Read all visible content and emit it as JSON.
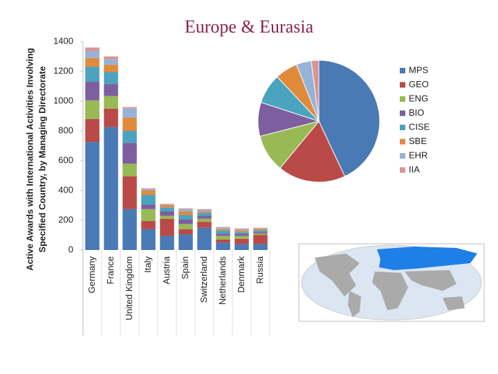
{
  "title": "Europe & Eurasia",
  "chart_data": [
    {
      "type": "bar",
      "ylabel": [
        "Active Awards with International Activities Involving",
        "Specified Country, by Managing Directorate"
      ],
      "categories": [
        "Germany",
        "France",
        "United Kingdom",
        "Italy",
        "Austria",
        "Spain",
        "Switzerland",
        "Netherlands",
        "Denmark",
        "Russia"
      ],
      "series": [
        {
          "name": "MPS",
          "color": "#4a7ab5",
          "values": [
            725,
            825,
            275,
            140,
            95,
            105,
            150,
            50,
            40,
            40
          ]
        },
        {
          "name": "GEO",
          "color": "#b94a48",
          "values": [
            155,
            125,
            220,
            55,
            115,
            35,
            40,
            20,
            35,
            60
          ]
        },
        {
          "name": "ENG",
          "color": "#98b954",
          "values": [
            125,
            85,
            85,
            80,
            20,
            35,
            20,
            25,
            20,
            10
          ]
        },
        {
          "name": "BIO",
          "color": "#7d5fa0",
          "values": [
            125,
            80,
            140,
            30,
            30,
            30,
            20,
            15,
            15,
            10
          ]
        },
        {
          "name": "CISE",
          "color": "#4aa3bf",
          "values": [
            100,
            80,
            80,
            65,
            25,
            30,
            20,
            20,
            10,
            10
          ]
        },
        {
          "name": "SBE",
          "color": "#e08a3c",
          "values": [
            60,
            50,
            90,
            30,
            15,
            25,
            10,
            10,
            10,
            10
          ]
        },
        {
          "name": "EHR",
          "color": "#95b3d7",
          "values": [
            45,
            35,
            60,
            10,
            5,
            15,
            10,
            10,
            10,
            5
          ]
        },
        {
          "name": "IIA",
          "color": "#d99594",
          "values": [
            25,
            20,
            10,
            5,
            5,
            5,
            5,
            5,
            5,
            5
          ]
        }
      ],
      "ylim": [
        0,
        1400
      ],
      "yticks": [
        0,
        200,
        400,
        600,
        800,
        1000,
        1200,
        1400
      ]
    },
    {
      "type": "pie",
      "values": [
        43,
        18,
        10,
        9,
        8,
        6,
        4,
        2
      ]
    }
  ]
}
